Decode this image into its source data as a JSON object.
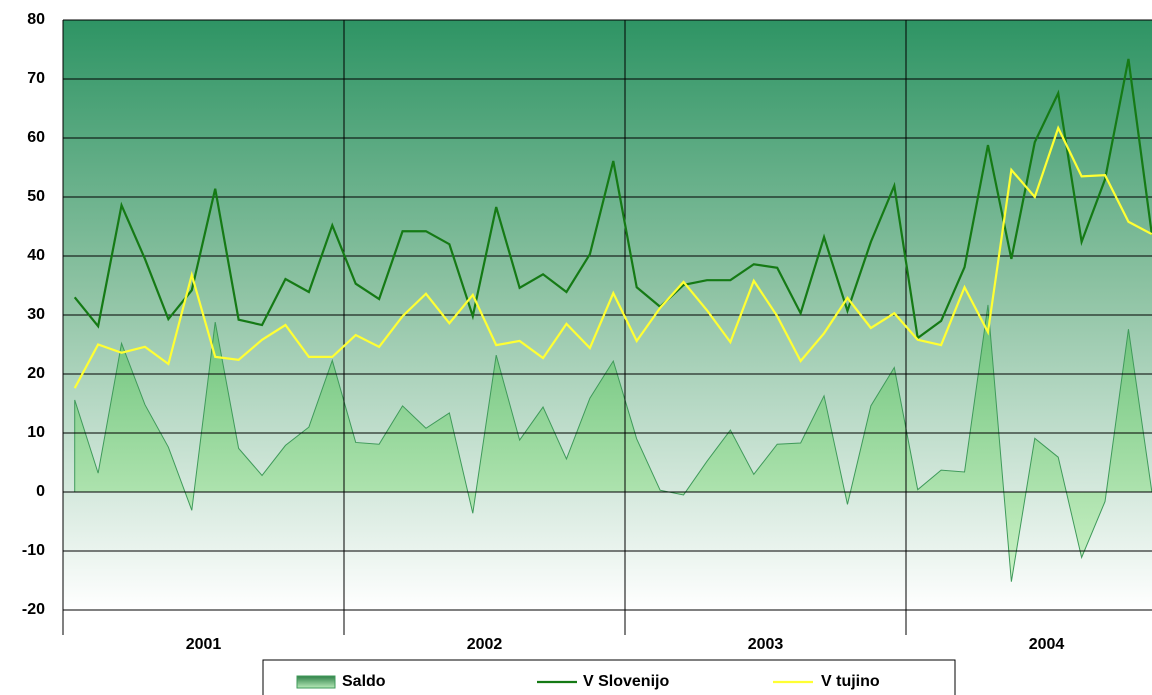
{
  "chart_data": {
    "type": "line",
    "year_labels": [
      "2001",
      "2002",
      "2003",
      "2004"
    ],
    "ylim": [
      -20,
      80
    ],
    "yticks": [
      -20,
      -10,
      0,
      10,
      20,
      30,
      40,
      50,
      60,
      70,
      80
    ],
    "grid": true,
    "legend": "bottom",
    "series": [
      {
        "name": "Saldo",
        "type": "area",
        "color": "#3f9a5a",
        "values": [
          15.6,
          3.2,
          25.2,
          14.8,
          7.6,
          -3.1,
          28.8,
          7.4,
          2.8,
          7.9,
          11,
          22.3,
          8.4,
          8.1,
          14.6,
          10.8,
          13.4,
          -3.6,
          23.2,
          8.8,
          14.4,
          5.6,
          15.9,
          22.2,
          9,
          0.3,
          -0.5,
          5.2,
          10.5,
          3,
          8.1,
          8.3,
          16.3,
          -2.1,
          14.6,
          21.1,
          0.4,
          3.7,
          3.4,
          31.7,
          -15.2,
          9.1,
          5.9,
          -11.1,
          -1.6,
          27.6,
          0
        ]
      },
      {
        "name": "V Slovenijo",
        "type": "line",
        "color": "#157a15",
        "values": [
          33,
          28.1,
          48.6,
          39.5,
          29.3,
          34.2,
          51.4,
          29.2,
          28.3,
          36.1,
          33.9,
          45.2,
          35.3,
          32.7,
          44.2,
          44.2,
          42,
          29.8,
          48.3,
          34.6,
          36.9,
          33.9,
          40.3,
          56.1,
          34.7,
          31.4,
          35.1,
          35.9,
          35.9,
          38.6,
          38,
          30.3,
          43.2,
          30.7,
          42.4,
          51.9,
          26.1,
          29,
          38.1,
          58.8,
          39.5,
          59.3,
          67.6,
          42.4,
          53,
          73.4,
          43.6
        ]
      },
      {
        "name": "V tujino",
        "type": "line",
        "color": "#ffff33",
        "values": [
          17.6,
          25,
          23.6,
          24.6,
          21.7,
          36.8,
          22.9,
          22.4,
          25.8,
          28.3,
          22.9,
          22.9,
          26.6,
          24.6,
          29.8,
          33.6,
          28.6,
          33.4,
          24.9,
          25.6,
          22.7,
          28.5,
          24.4,
          33.7,
          25.6,
          31.2,
          35.6,
          30.8,
          25.4,
          35.8,
          29.8,
          22.2,
          26.9,
          32.9,
          27.8,
          30.3,
          25.8,
          24.9,
          34.7,
          27.1,
          54.6,
          50,
          61.7,
          53.5,
          53.7,
          45.8,
          43.7
        ]
      }
    ]
  }
}
